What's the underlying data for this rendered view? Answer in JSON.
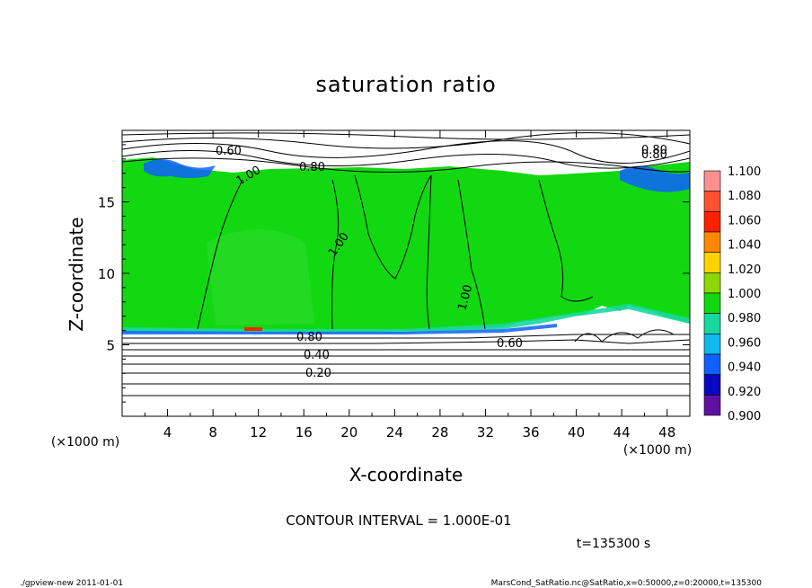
{
  "chart_data": {
    "type": "heatmap",
    "title": "saturation ratio",
    "xlabel": "X-coordinate",
    "ylabel": "Z-coordinate",
    "x_unit": "(×1000 m)",
    "y_unit": "(×1000 m)",
    "xlim": [
      0,
      50
    ],
    "ylim": [
      0,
      20
    ],
    "x_ticks": [
      "4",
      "8",
      "12",
      "16",
      "20",
      "24",
      "28",
      "32",
      "36",
      "40",
      "44",
      "48"
    ],
    "y_ticks": [
      "5",
      "10",
      "15"
    ],
    "contour_interval": "CONTOUR INTERVAL = 1.000E-01",
    "time_label": "t=135300 s",
    "contour_labels": [
      "0.60",
      "0.80",
      "1.00",
      "1.00",
      "1.00",
      "0.80",
      "0.40",
      "0.20",
      "0.60",
      "0.80",
      "0.80"
    ],
    "colorbar": {
      "levels": [
        "1.100",
        "1.080",
        "1.060",
        "1.040",
        "1.020",
        "1.000",
        "0.980",
        "0.960",
        "0.940",
        "0.920",
        "0.900"
      ],
      "colors": [
        "#ff9090",
        "#ff5030",
        "#ff2000",
        "#ff8800",
        "#ffd200",
        "#8cd800",
        "#12d812",
        "#18d8a0",
        "#10b8f0",
        "#1060ff",
        "#0808c0",
        "#6010a0"
      ]
    },
    "grid": false
  },
  "footer": {
    "left": "./gpview-new   2011-01-01",
    "right": "MarsCond_SatRatio.nc@SatRatio,x=0:50000,z=0:20000,t=135300"
  }
}
